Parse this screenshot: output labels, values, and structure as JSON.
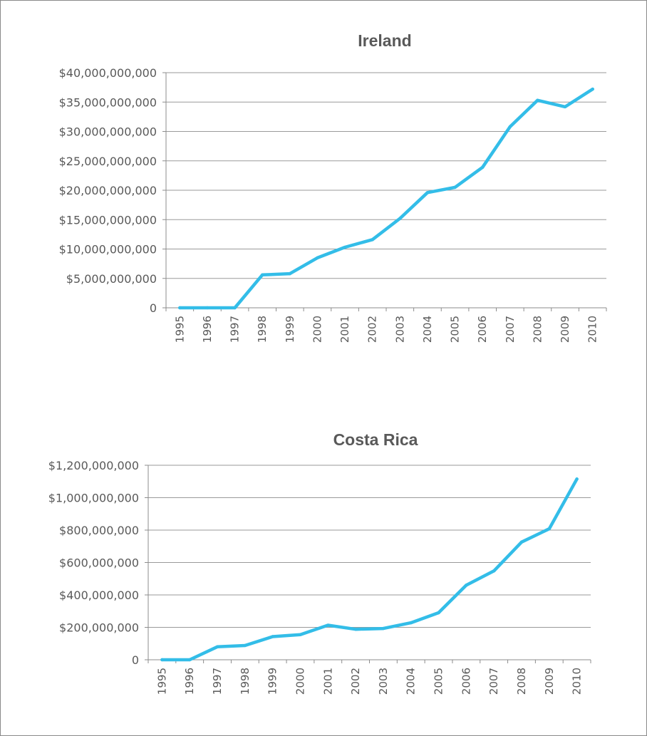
{
  "chart_data": [
    {
      "type": "line",
      "title": "Ireland",
      "xlabel": "",
      "ylabel": "",
      "categories": [
        "1995",
        "1996",
        "1997",
        "1998",
        "1999",
        "2000",
        "2001",
        "2002",
        "2003",
        "2004",
        "2005",
        "2006",
        "2007",
        "2008",
        "2009",
        "2010"
      ],
      "series": [
        {
          "values": [
            0,
            0,
            0,
            5600000000,
            5800000000,
            8500000000,
            10300000000,
            11600000000,
            15200000000,
            19600000000,
            20500000000,
            23900000000,
            30800000000,
            35300000000,
            34200000000,
            37200000000
          ]
        }
      ],
      "ylim": [
        0,
        40000000000
      ],
      "ytick_labels": [
        "0",
        "$5,000,000,000",
        "$10,000,000,000",
        "$15,000,000,000",
        "$20,000,000,000",
        "$25,000,000,000",
        "$30,000,000,000",
        "$35,000,000,000",
        "$40,000,000,000"
      ],
      "grid": true,
      "legend": "none",
      "color": "#33bde8"
    },
    {
      "type": "line",
      "title": "Costa Rica",
      "xlabel": "",
      "ylabel": "",
      "categories": [
        "1995",
        "1996",
        "1997",
        "1998",
        "1999",
        "2000",
        "2001",
        "2002",
        "2003",
        "2004",
        "2005",
        "2006",
        "2007",
        "2008",
        "2009",
        "2010"
      ],
      "series": [
        {
          "values": [
            0,
            0,
            80000000,
            88000000,
            143000000,
            155000000,
            213000000,
            188000000,
            193000000,
            228000000,
            290000000,
            460000000,
            548000000,
            726000000,
            808000000,
            1115000000
          ]
        }
      ],
      "ylim": [
        0,
        1200000000
      ],
      "ytick_labels": [
        "0",
        "$200,000,000",
        "$400,000,000",
        "$600,000,000",
        "$800,000,000",
        "$1,000,000,000",
        "$1,200,000,000"
      ],
      "grid": true,
      "legend": "none",
      "color": "#33bde8"
    }
  ]
}
